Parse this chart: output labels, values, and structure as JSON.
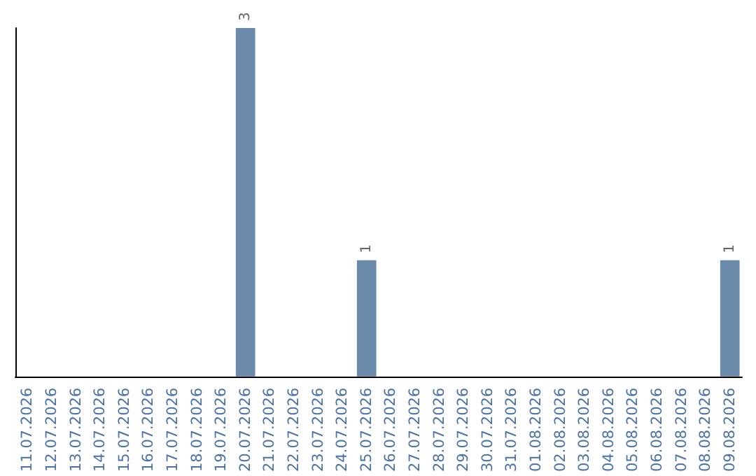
{
  "chart_data": {
    "type": "bar",
    "categories": [
      "11.07.2026",
      "12.07.2026",
      "13.07.2026",
      "14.07.2026",
      "15.07.2026",
      "16.07.2026",
      "17.07.2026",
      "18.07.2026",
      "19.07.2026",
      "20.07.2026",
      "21.07.2026",
      "22.07.2026",
      "23.07.2026",
      "24.07.2026",
      "25.07.2026",
      "26.07.2026",
      "27.07.2026",
      "28.07.2026",
      "29.07.2026",
      "30.07.2026",
      "31.07.2026",
      "01.08.2026",
      "02.08.2026",
      "03.08.2026",
      "04.08.2026",
      "05.08.2026",
      "06.08.2026",
      "07.08.2026",
      "08.08.2026",
      "09.08.2026"
    ],
    "values": [
      null,
      null,
      null,
      null,
      null,
      null,
      null,
      null,
      null,
      3,
      null,
      null,
      null,
      null,
      1,
      null,
      null,
      null,
      null,
      null,
      null,
      null,
      null,
      null,
      null,
      null,
      null,
      null,
      null,
      1
    ],
    "color": "#6b8aaa",
    "data_labels": true
  }
}
